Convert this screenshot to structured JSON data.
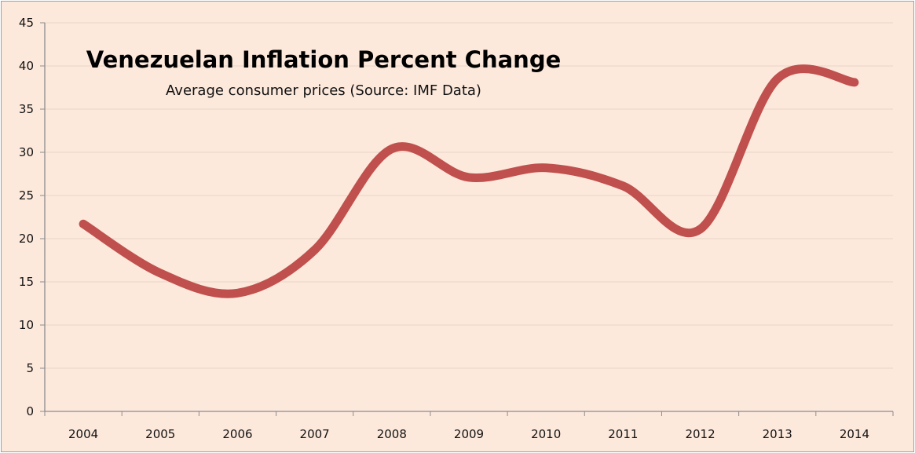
{
  "chart_data": {
    "type": "line",
    "title": "Venezuelan Inflation Percent Change",
    "subtitle": "Average consumer prices (Source: IMF Data)",
    "xlabel": "",
    "ylabel": "",
    "categories": [
      "2004",
      "2005",
      "2006",
      "2007",
      "2008",
      "2009",
      "2010",
      "2011",
      "2012",
      "2013",
      "2014"
    ],
    "series": [
      {
        "name": "Inflation",
        "values": [
          21.7,
          16.0,
          13.7,
          18.7,
          30.4,
          27.1,
          28.2,
          26.1,
          21.1,
          38.5,
          38.1
        ],
        "color": "#c0504d"
      }
    ],
    "ylim": [
      0,
      45
    ],
    "yticks": [
      0,
      5,
      10,
      15,
      20,
      25,
      30,
      35,
      40,
      45
    ],
    "smooth": true,
    "grid": true,
    "legend": "none",
    "colors": {
      "background": "#fde9dc",
      "grid": "#f0dccf",
      "axis": "#8c8c8c"
    }
  }
}
